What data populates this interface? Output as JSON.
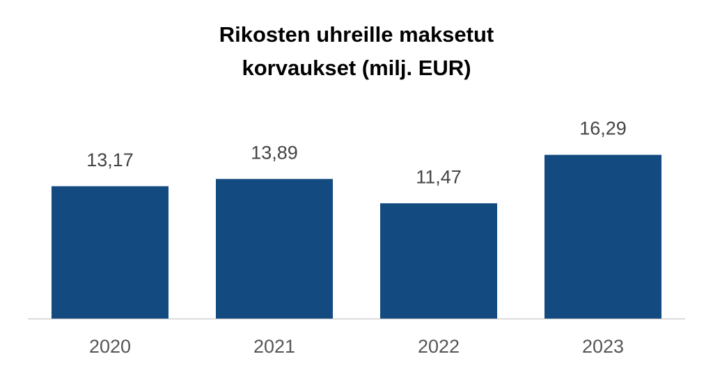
{
  "chart_data": {
    "type": "bar",
    "title": [
      "Rikosten uhreille maksetut",
      "korvaukset (milj. EUR)"
    ],
    "categories": [
      "2020",
      "2021",
      "2022",
      "2023"
    ],
    "values": [
      13.17,
      13.89,
      11.47,
      16.29
    ],
    "value_labels": [
      "13,17",
      "13,89",
      "11,47",
      "16,29"
    ],
    "color": "#134a7f",
    "ylim": [
      0,
      20
    ]
  }
}
